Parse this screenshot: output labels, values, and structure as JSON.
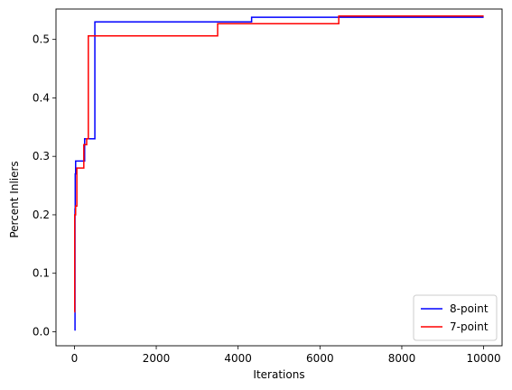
{
  "chart_data": {
    "type": "line",
    "title": "",
    "xlabel": "Iterations",
    "ylabel": "Percent Inliers",
    "xlim": [
      -450,
      10450
    ],
    "ylim": [
      -0.024,
      0.552
    ],
    "xticks": [
      0,
      2000,
      4000,
      6000,
      8000,
      10000
    ],
    "yticks": [
      0.0,
      0.1,
      0.2,
      0.3,
      0.4,
      0.5
    ],
    "xtick_labels": [
      "0",
      "2000",
      "4000",
      "6000",
      "8000",
      "10000"
    ],
    "ytick_labels": [
      "0.0",
      "0.1",
      "0.2",
      "0.3",
      "0.4",
      "0.5"
    ],
    "grid": false,
    "legend_position": "lower-right",
    "series": [
      {
        "name": "8-point",
        "color": "#0000ff",
        "step": true,
        "x": [
          0,
          15,
          20,
          30,
          250,
          500,
          4330,
          10000
        ],
        "y": [
          0.003,
          0.21,
          0.27,
          0.292,
          0.33,
          0.53,
          0.538,
          0.538
        ]
      },
      {
        "name": "7-point",
        "color": "#ff0000",
        "step": true,
        "x": [
          0,
          8,
          30,
          60,
          230,
          300,
          340,
          3500,
          6460,
          10000
        ],
        "y": [
          0.034,
          0.2,
          0.215,
          0.28,
          0.32,
          0.33,
          0.506,
          0.527,
          0.54,
          0.54
        ]
      }
    ]
  }
}
